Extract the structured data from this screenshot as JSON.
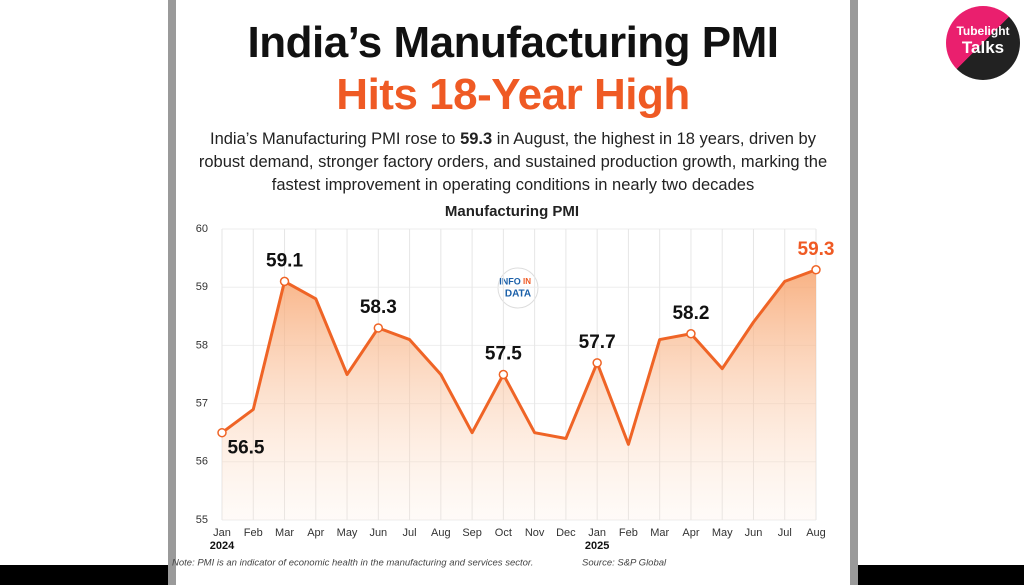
{
  "chart_data": {
    "type": "line",
    "title": "India’s Manufacturing PMI",
    "title_highlight": "Hits 18-Year High",
    "subtitle_before": "India’s Manufacturing PMI rose to ",
    "subtitle_bold": "59.3",
    "subtitle_after": " in August, the highest in 18 years, driven by robust demand, stronger factory orders, and sustained production growth, marking the fastest improvement in operating conditions in nearly two decades",
    "chart_title": "Manufacturing PMI",
    "categories": [
      "Jan",
      "Feb",
      "Mar",
      "Apr",
      "May",
      "Jun",
      "Jul",
      "Aug",
      "Sep",
      "Oct",
      "Nov",
      "Dec",
      "Jan",
      "Feb",
      "Mar",
      "Apr",
      "May",
      "Jun",
      "Jul",
      "Aug"
    ],
    "year_labels": [
      "2024",
      null,
      null,
      null,
      null,
      null,
      null,
      null,
      null,
      null,
      null,
      null,
      "2025",
      null,
      null,
      null,
      null,
      null,
      null,
      null
    ],
    "values": [
      56.5,
      56.9,
      59.1,
      58.8,
      57.5,
      58.3,
      58.1,
      57.5,
      56.5,
      57.5,
      56.5,
      56.4,
      57.7,
      56.3,
      58.1,
      58.2,
      57.6,
      58.4,
      59.1,
      59.3
    ],
    "value_labels": [
      "56.5",
      null,
      "59.1",
      null,
      null,
      "58.3",
      null,
      null,
      null,
      "57.5",
      null,
      null,
      "57.7",
      null,
      null,
      "58.2",
      null,
      null,
      null,
      "59.3"
    ],
    "color": "#ef6426",
    "highlight_color": "#ef5a24",
    "ylim": [
      55,
      60
    ],
    "yticks": [
      55,
      56,
      57,
      58,
      59,
      60
    ],
    "grid": true,
    "note": "Note: PMI is an indicator of economic health in the manufacturing and services sector.",
    "source": "Source: S&P Global",
    "watermark": [
      "INFO",
      "IN",
      "DATA"
    ],
    "brand": [
      "Tubelight",
      "Talks"
    ]
  }
}
